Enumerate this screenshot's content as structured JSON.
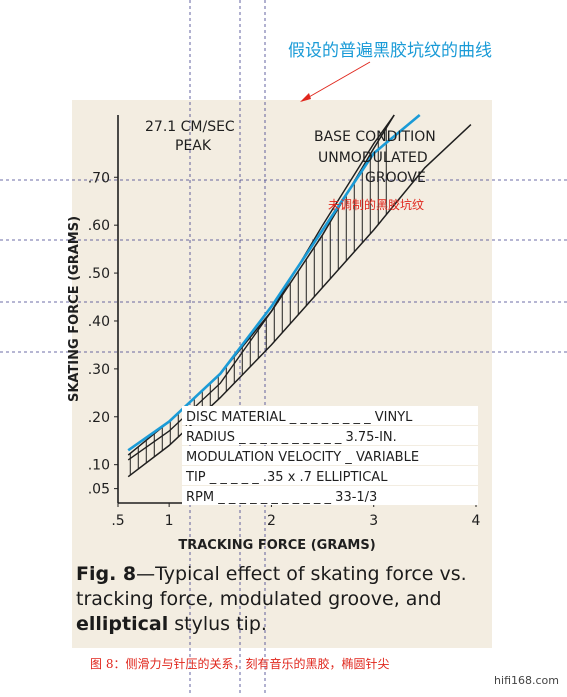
{
  "chart_data": {
    "type": "line",
    "xlabel": "TRACKING FORCE (GRAMS)",
    "ylabel": "SKATING FORCE (GRAMS)",
    "xlim": [
      0.5,
      4
    ],
    "ylim": [
      0.02,
      0.83
    ],
    "x_ticks": [
      {
        "value": 0.5,
        "label": ".5"
      },
      {
        "value": 1,
        "label": "1"
      },
      {
        "value": 2,
        "label": "2"
      },
      {
        "value": 3,
        "label": "3"
      },
      {
        "value": 4,
        "label": "4"
      }
    ],
    "y_ticks": [
      {
        "value": 0.05,
        "label": ".05"
      },
      {
        "value": 0.1,
        "label": ".10"
      },
      {
        "value": 0.2,
        "label": ".20"
      },
      {
        "value": 0.3,
        "label": ".30"
      },
      {
        "value": 0.4,
        "label": ".40"
      },
      {
        "value": 0.5,
        "label": ".50"
      },
      {
        "value": 0.6,
        "label": ".60"
      },
      {
        "value": 0.7,
        "label": ".70"
      }
    ],
    "band": {
      "label": "27.1 CM/SEC PEAK",
      "upper": [
        [
          0.6,
          0.12
        ],
        [
          1.0,
          0.19
        ],
        [
          1.5,
          0.29
        ],
        [
          2.0,
          0.42
        ],
        [
          2.5,
          0.58
        ],
        [
          3.0,
          0.76
        ],
        [
          3.2,
          0.83
        ]
      ],
      "lower": [
        [
          0.6,
          0.075
        ],
        [
          1.0,
          0.14
        ],
        [
          1.5,
          0.24
        ],
        [
          2.0,
          0.35
        ],
        [
          2.5,
          0.47
        ],
        [
          3.0,
          0.59
        ],
        [
          3.5,
          0.72
        ],
        [
          3.95,
          0.81
        ]
      ]
    },
    "base_condition": {
      "label": "BASE CONDITION UNMODULATED GROOVE",
      "points": [
        [
          0.6,
          0.11
        ],
        [
          1.0,
          0.17
        ],
        [
          1.5,
          0.27
        ],
        [
          2.0,
          0.42
        ],
        [
          2.5,
          0.6
        ],
        [
          3.0,
          0.77
        ],
        [
          3.2,
          0.83
        ]
      ]
    },
    "overlay_curve": {
      "name": "假设的普遍黑胶坑纹的曲线",
      "color": "#1a9bd7",
      "points": [
        [
          0.6,
          0.13
        ],
        [
          1.0,
          0.19
        ],
        [
          1.5,
          0.29
        ],
        [
          2.0,
          0.43
        ],
        [
          2.5,
          0.59
        ],
        [
          3.0,
          0.75
        ],
        [
          3.45,
          0.83
        ]
      ]
    },
    "annotations": [
      {
        "text": "DISC MATERIAL _ _ _ _ _ _ _ _  VINYL"
      },
      {
        "text": "RADIUS _ _ _ _ _ _ _ _ _ _ 3.75-IN."
      },
      {
        "text": "MODULATION VELOCITY _ VARIABLE"
      },
      {
        "text": "TIP _ _ _ _ _ .35 x .7 ELLIPTICAL"
      },
      {
        "text": "RPM _ _ _ _ _ _ _ _ _ _ _ 33-1/3"
      }
    ],
    "grid": false
  },
  "annotation_blue": "假设的普遍黑胶坑纹的曲线",
  "annotation_red": "未调制的黑胶坑纹",
  "caption": {
    "lead": "Fig. 8",
    "part1": "—Typical effect of skating force vs. tracking force, modulated groove, and ",
    "strong": "elliptical",
    "part2": " stylus tip."
  },
  "caption_cn": "图 8：侧滑力与针压的关系，刻有音乐的黑胶，椭圆针尖",
  "watermark": "hifi168.com",
  "colors": {
    "scan_background": "#f3ede1",
    "ink": "#1f1f1f",
    "blue_line": "#1a9bd7",
    "red_text": "#e0261c",
    "guide_lines": "#3d3d8a"
  }
}
